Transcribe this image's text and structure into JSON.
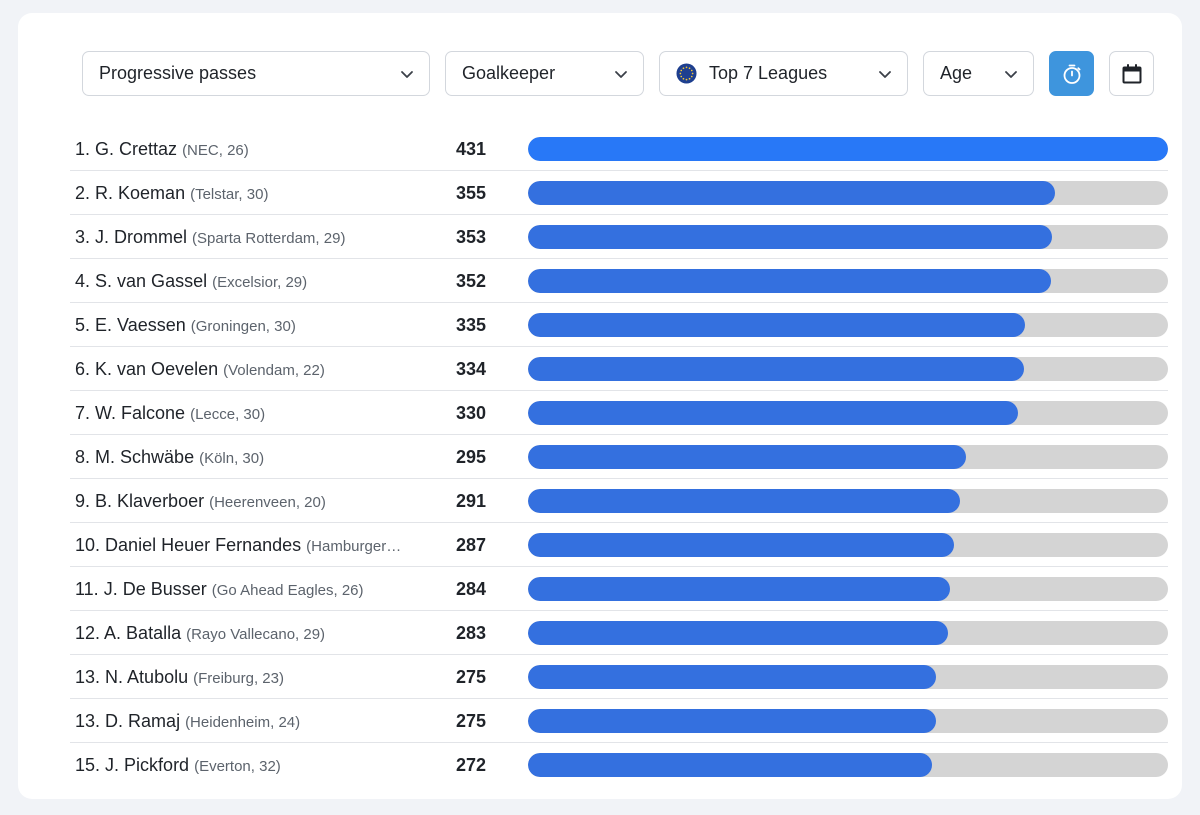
{
  "filters": {
    "metric": "Progressive passes",
    "position": "Goalkeeper",
    "competition": "Top 7 Leagues",
    "sort": "Age"
  },
  "icons": {
    "timer_button": "stopwatch-icon",
    "calendar_button": "calendar-icon",
    "chevron": "chevron-down-icon",
    "competition_icon": "europe-flag-icon"
  },
  "colors": {
    "bar_top": "#2878f7",
    "bar_fill": "#3470df",
    "track": "#d4d4d4",
    "active_button": "#3e95dd"
  },
  "ranking": [
    {
      "rank": "1.",
      "name": "G. Crettaz",
      "meta": "(NEC, 26)",
      "value": "431",
      "fraction": 1.0
    },
    {
      "rank": "2.",
      "name": "R. Koeman",
      "meta": "(Telstar, 30)",
      "value": "355",
      "fraction": 0.824
    },
    {
      "rank": "3.",
      "name": "J. Drommel",
      "meta": "(Sparta Rotterdam, 29)",
      "value": "353",
      "fraction": 0.819
    },
    {
      "rank": "4.",
      "name": "S. van Gassel",
      "meta": "(Excelsior, 29)",
      "value": "352",
      "fraction": 0.817
    },
    {
      "rank": "5.",
      "name": "E. Vaessen",
      "meta": "(Groningen, 30)",
      "value": "335",
      "fraction": 0.777
    },
    {
      "rank": "6.",
      "name": "K. van Oevelen",
      "meta": "(Volendam, 22)",
      "value": "334",
      "fraction": 0.775
    },
    {
      "rank": "7.",
      "name": "W. Falcone",
      "meta": "(Lecce, 30)",
      "value": "330",
      "fraction": 0.766
    },
    {
      "rank": "8.",
      "name": "M. Schwäbe",
      "meta": "(Köln, 30)",
      "value": "295",
      "fraction": 0.684
    },
    {
      "rank": "9.",
      "name": "B. Klaverboer",
      "meta": "(Heerenveen, 20)",
      "value": "291",
      "fraction": 0.675
    },
    {
      "rank": "10.",
      "name": "Daniel Heuer Fernandes",
      "meta": "(Hamburger…",
      "value": "287",
      "fraction": 0.666
    },
    {
      "rank": "11.",
      "name": "J. De Busser",
      "meta": "(Go Ahead Eagles, 26)",
      "value": "284",
      "fraction": 0.659
    },
    {
      "rank": "12.",
      "name": "A. Batalla",
      "meta": "(Rayo Vallecano, 29)",
      "value": "283",
      "fraction": 0.657
    },
    {
      "rank": "13.",
      "name": "N. Atubolu",
      "meta": "(Freiburg, 23)",
      "value": "275",
      "fraction": 0.638
    },
    {
      "rank": "13.",
      "name": "D. Ramaj",
      "meta": "(Heidenheim, 24)",
      "value": "275",
      "fraction": 0.638
    },
    {
      "rank": "15.",
      "name": "J. Pickford",
      "meta": "(Everton, 32)",
      "value": "272",
      "fraction": 0.631
    }
  ]
}
